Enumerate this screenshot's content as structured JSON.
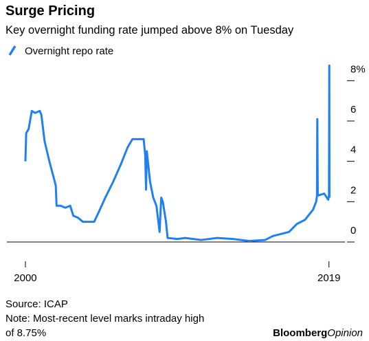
{
  "chart_data": {
    "type": "line",
    "title": "Surge Pricing",
    "subtitle": "Key overnight funding rate jumped above 8% on Tuesday",
    "x": [
      2000.0,
      2000.05,
      2000.2,
      2000.4,
      2000.6,
      2000.9,
      2001.0,
      2001.2,
      2001.5,
      2001.7,
      2001.9,
      2001.95,
      2002.2,
      2002.5,
      2002.8,
      2003.0,
      2003.3,
      2003.6,
      2004.0,
      2004.3,
      2004.6,
      2005.0,
      2005.5,
      2006.0,
      2006.4,
      2006.7,
      2007.0,
      2007.4,
      2007.5,
      2007.55,
      2007.6,
      2007.8,
      2008.0,
      2008.2,
      2008.4,
      2008.5,
      2008.6,
      2008.8,
      2008.9,
      2009.5,
      2010.0,
      2011.0,
      2012.0,
      2013.0,
      2014.0,
      2015.0,
      2015.5,
      2016.0,
      2016.5,
      2017.0,
      2017.5,
      2018.0,
      2018.2,
      2018.25,
      2018.27,
      2018.3,
      2018.7,
      2018.95,
      2019.0,
      2019.02,
      2019.03
    ],
    "series": [
      {
        "name": "Overnight repo rate",
        "color": "#1f80f2",
        "values": [
          4.0,
          5.4,
          5.6,
          6.5,
          6.4,
          6.5,
          6.3,
          5.0,
          4.0,
          3.4,
          2.8,
          1.8,
          1.8,
          1.7,
          1.8,
          1.3,
          1.2,
          1.0,
          1.0,
          1.0,
          1.5,
          2.2,
          3.0,
          3.9,
          4.7,
          5.1,
          5.1,
          5.1,
          4.3,
          2.6,
          4.5,
          3.0,
          2.2,
          1.8,
          0.5,
          2.2,
          2.0,
          1.0,
          0.2,
          0.15,
          0.2,
          0.1,
          0.2,
          0.15,
          0.05,
          0.1,
          0.3,
          0.4,
          0.5,
          0.9,
          1.1,
          1.6,
          2.0,
          2.3,
          6.1,
          2.3,
          2.4,
          2.1,
          2.3,
          8.75,
          2.2
        ]
      }
    ],
    "xlim": [
      1998.84,
      2020.0
    ],
    "xticks": [
      2000,
      2019
    ],
    "ylim": [
      0,
      9
    ],
    "yticks": [
      0,
      2,
      4,
      6,
      {
        "value": 8,
        "label": "8%"
      }
    ],
    "source": "Source: ICAP",
    "note": [
      "Note: Most-recent level marks intraday high",
      "of 8.75%"
    ],
    "logo": [
      "Bloomberg",
      "Opinion"
    ]
  }
}
